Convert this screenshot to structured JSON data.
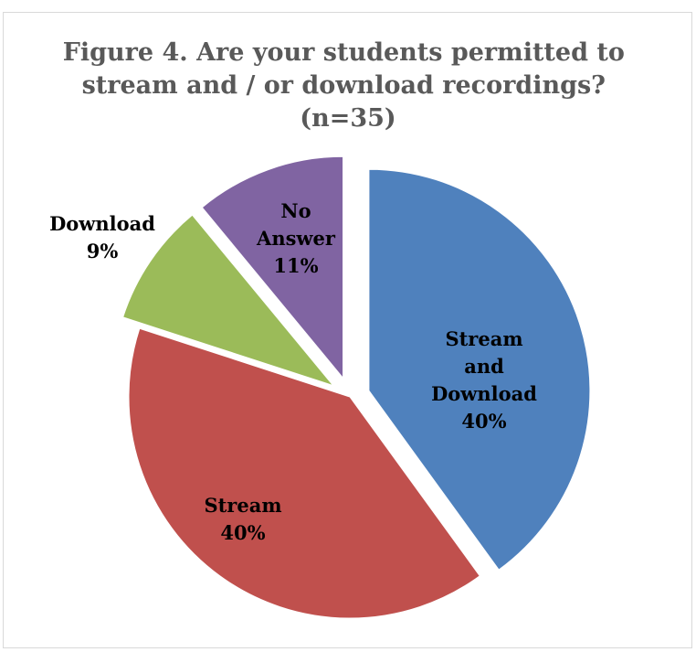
{
  "chart_data": {
    "type": "pie",
    "title_lines": [
      "Figure 4. Are your students permitted to",
      "stream and / or download recordings?",
      "(n=35)"
    ],
    "slices": [
      {
        "category": "Stream and Download",
        "label_lines": [
          "Stream",
          "and",
          "Download"
        ],
        "value": 40,
        "value_label": "40%",
        "color": "#4F81BD",
        "exploded": true
      },
      {
        "category": "Stream",
        "label_lines": [
          "Stream"
        ],
        "value": 40,
        "value_label": "40%",
        "color": "#C0504D",
        "exploded": false
      },
      {
        "category": "Download",
        "label_lines": [
          "Download"
        ],
        "value": 9,
        "value_label": "9%",
        "color": "#9BBB59",
        "exploded": true
      },
      {
        "category": "No Answer",
        "label_lines": [
          "No",
          "Answer"
        ],
        "value": 11,
        "value_label": "11%",
        "color": "#8064A2",
        "exploded": true
      }
    ],
    "legend": "none",
    "unit": "%"
  }
}
